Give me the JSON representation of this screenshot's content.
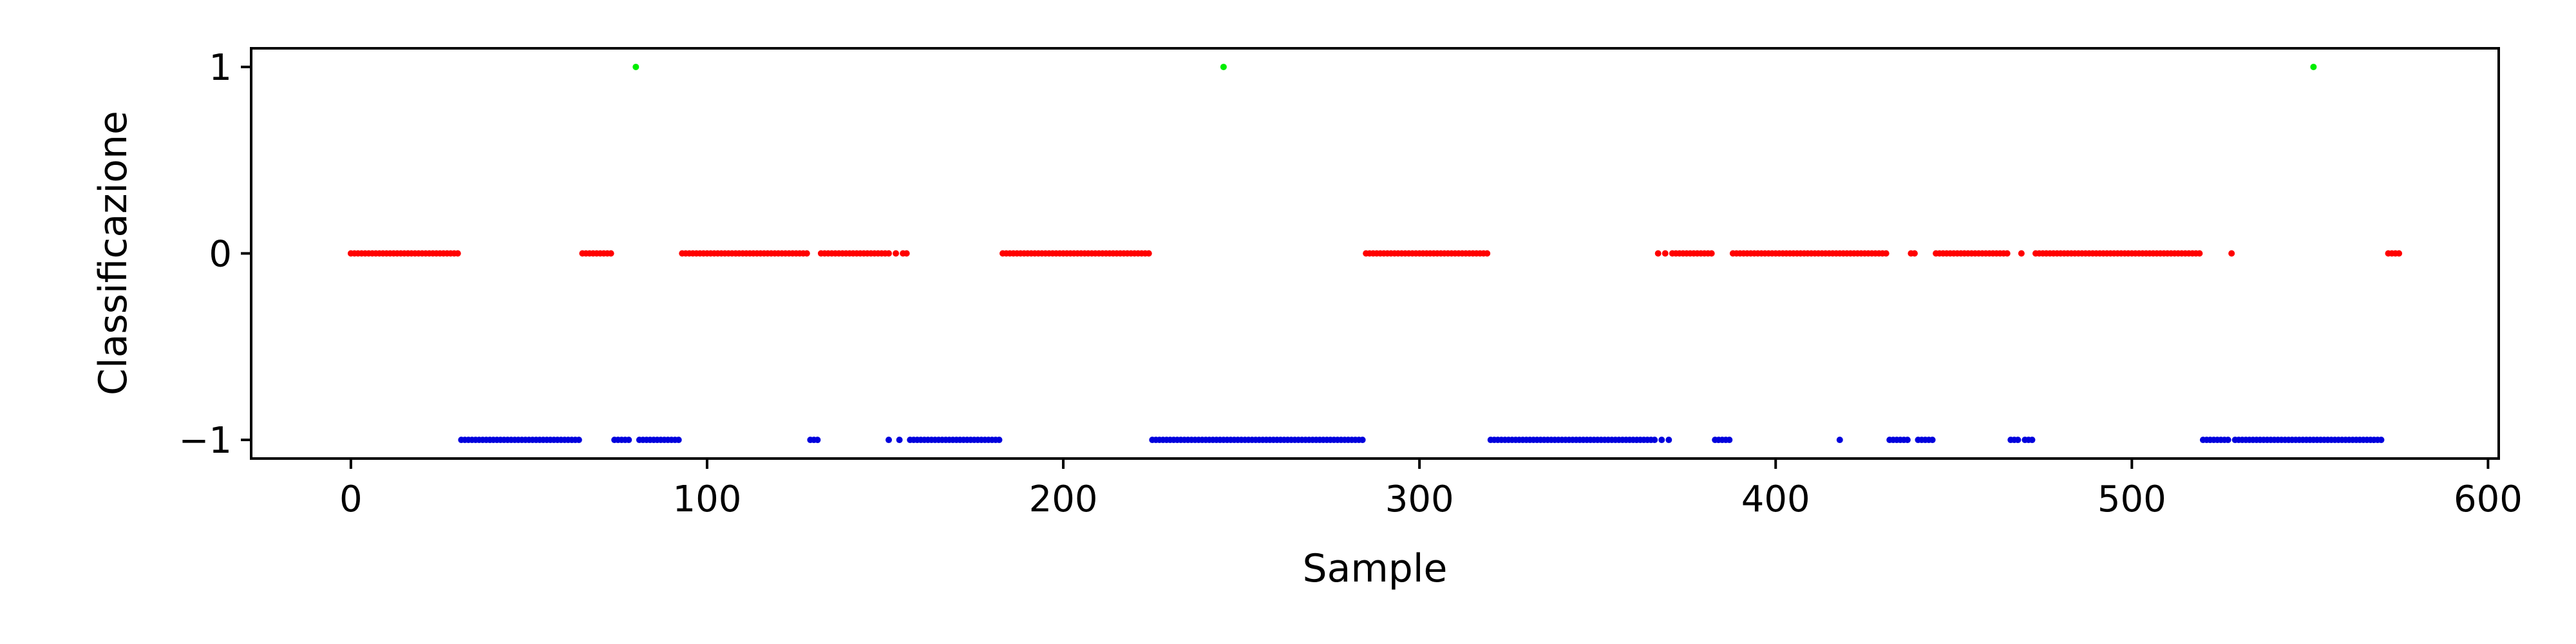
{
  "chart_data": {
    "type": "scatter",
    "title": "",
    "xlabel": "Sample",
    "ylabel": "Classificazione",
    "xlim": [
      -28,
      603
    ],
    "ylim": [
      -1.1,
      1.1
    ],
    "xticks": [
      0,
      100,
      200,
      300,
      400,
      500,
      600
    ],
    "yticks": [
      -1,
      0,
      1
    ],
    "ytick_labels": [
      "−1",
      "0",
      "1"
    ],
    "grid": false,
    "legend": "none",
    "colors": {
      "0": "#ff0000",
      "-1": "#0000dd",
      "1": "#00ee00"
    },
    "runs": [
      {
        "y": 0,
        "x": [
          0,
          30
        ]
      },
      {
        "y": -1,
        "x": [
          31,
          64
        ]
      },
      {
        "y": 0,
        "x": [
          65,
          73
        ]
      },
      {
        "y": -1,
        "x": [
          74,
          78
        ]
      },
      {
        "y": -1,
        "x": [
          81,
          92
        ]
      },
      {
        "y": 0,
        "x": [
          93,
          128
        ]
      },
      {
        "y": -1,
        "x": [
          129,
          131
        ]
      },
      {
        "y": 0,
        "x": [
          132,
          151
        ]
      },
      {
        "y": -1,
        "x": [
          151,
          151
        ]
      },
      {
        "y": 0,
        "x": [
          153,
          153
        ]
      },
      {
        "y": -1,
        "x": [
          154,
          154
        ]
      },
      {
        "y": 0,
        "x": [
          155,
          156
        ]
      },
      {
        "y": -1,
        "x": [
          157,
          182
        ]
      },
      {
        "y": 0,
        "x": [
          183,
          224
        ]
      },
      {
        "y": -1,
        "x": [
          225,
          284
        ]
      },
      {
        "y": 0,
        "x": [
          285,
          319
        ]
      },
      {
        "y": -1,
        "x": [
          320,
          366
        ]
      },
      {
        "y": 0,
        "x": [
          367,
          367
        ]
      },
      {
        "y": -1,
        "x": [
          368,
          368
        ]
      },
      {
        "y": 0,
        "x": [
          369,
          369
        ]
      },
      {
        "y": -1,
        "x": [
          370,
          370
        ]
      },
      {
        "y": 0,
        "x": [
          371,
          382
        ]
      },
      {
        "y": -1,
        "x": [
          383,
          387
        ]
      },
      {
        "y": 0,
        "x": [
          388,
          431
        ]
      },
      {
        "y": -1,
        "x": [
          418,
          418
        ]
      },
      {
        "y": -1,
        "x": [
          432,
          437
        ]
      },
      {
        "y": 0,
        "x": [
          438,
          439
        ]
      },
      {
        "y": -1,
        "x": [
          440,
          444
        ]
      },
      {
        "y": 0,
        "x": [
          445,
          465
        ]
      },
      {
        "y": -1,
        "x": [
          466,
          468
        ]
      },
      {
        "y": 0,
        "x": [
          469,
          469
        ]
      },
      {
        "y": -1,
        "x": [
          470,
          472
        ]
      },
      {
        "y": 0,
        "x": [
          473,
          519
        ]
      },
      {
        "y": -1,
        "x": [
          520,
          527
        ]
      },
      {
        "y": 0,
        "x": [
          528,
          528
        ]
      },
      {
        "y": -1,
        "x": [
          529,
          570
        ]
      },
      {
        "y": 0,
        "x": [
          572,
          575
        ]
      }
    ],
    "points": [
      {
        "x": 80,
        "y": 1
      },
      {
        "x": 245,
        "y": 1
      },
      {
        "x": 551,
        "y": 1
      }
    ]
  }
}
